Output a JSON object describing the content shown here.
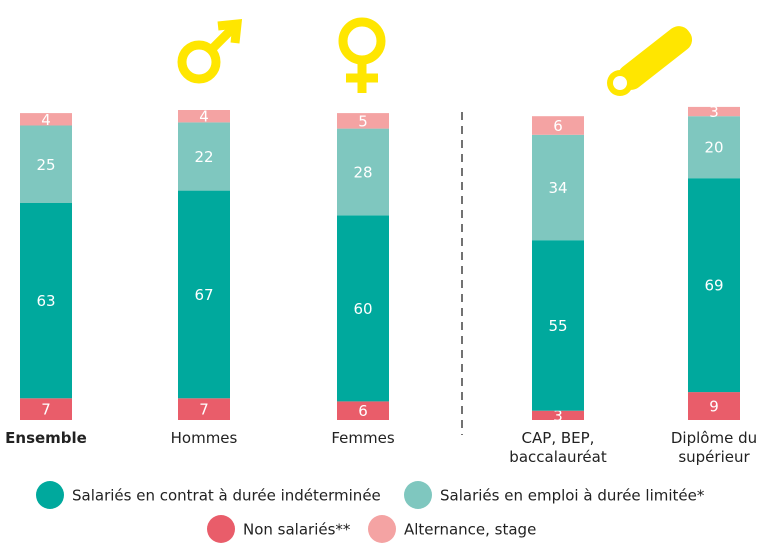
{
  "chart_data": {
    "type": "stacked-bar",
    "categories": [
      "Ensemble",
      "Hommes",
      "Femmes",
      "CAP, BEP, baccalauréat",
      "Diplôme du supérieur"
    ],
    "series": [
      {
        "name": "Non salariés**",
        "color": "#e95d6a",
        "values": [
          7,
          7,
          6,
          3,
          9
        ]
      },
      {
        "name": "Salariés en contrat à durée indéterminée",
        "color": "#00a99d",
        "values": [
          63,
          67,
          60,
          55,
          69
        ]
      },
      {
        "name": "Salariés en emploi à durée limitée*",
        "color": "#7fc7bf",
        "values": [
          25,
          22,
          28,
          34,
          20
        ]
      },
      {
        "name": "Alternance, stage",
        "color": "#f4a3a3",
        "values": [
          4,
          4,
          5,
          6,
          3
        ]
      }
    ]
  }
}
